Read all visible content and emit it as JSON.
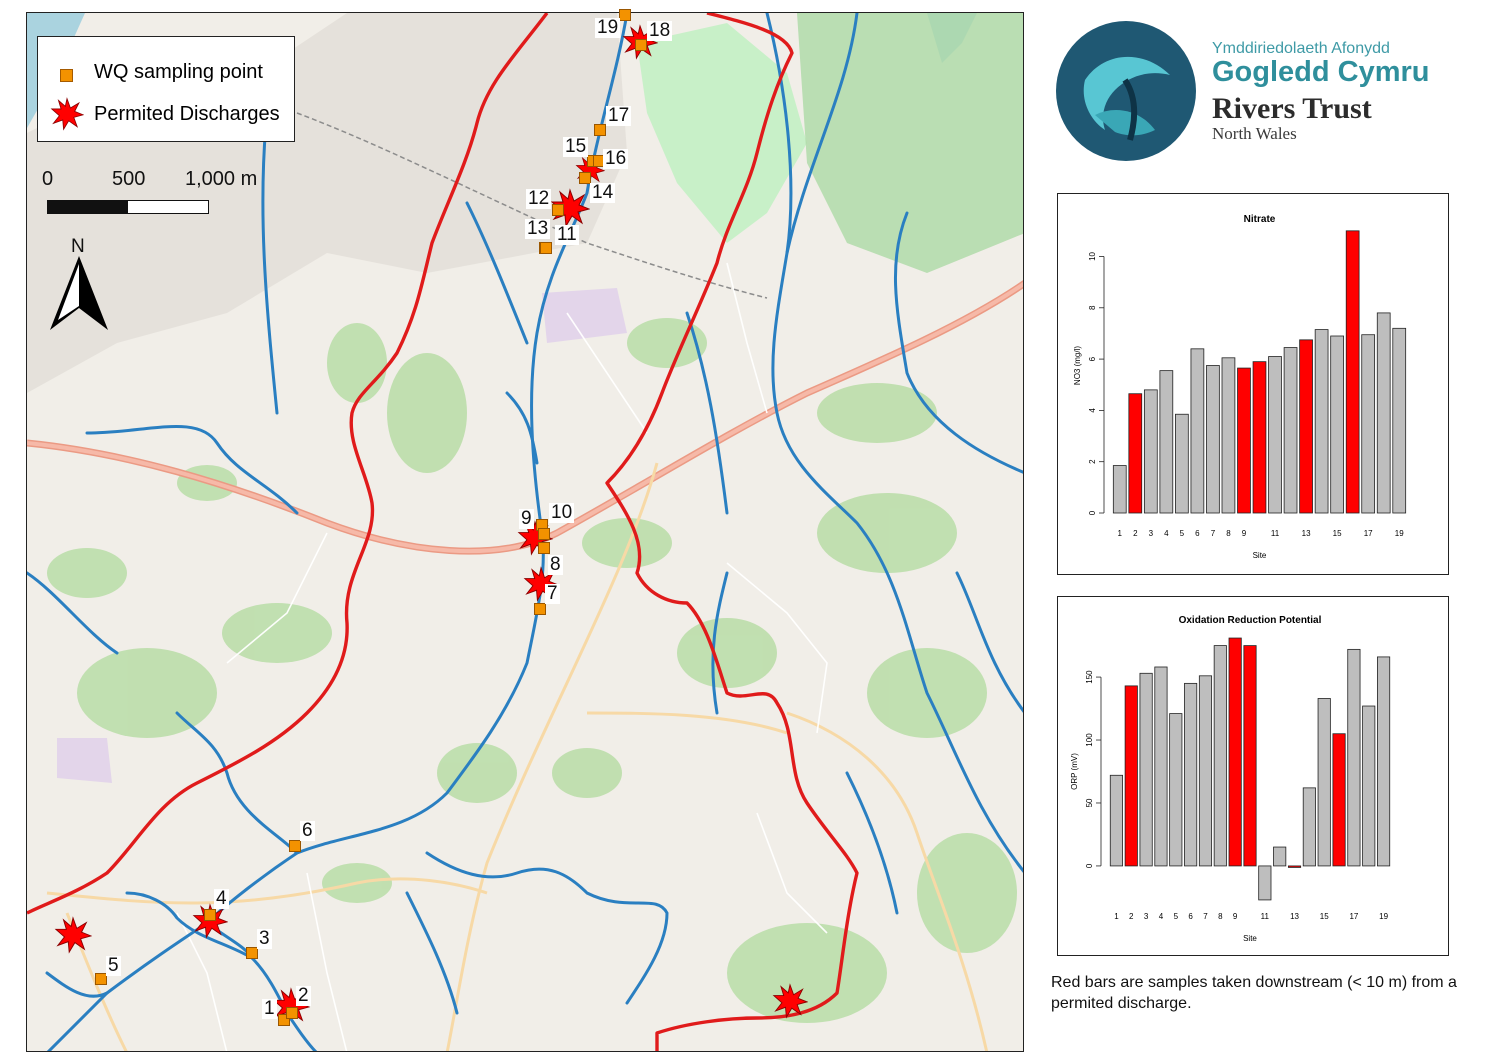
{
  "legend": {
    "sampling_label": "WQ sampling point",
    "discharge_label": "Permited Discharges"
  },
  "scale": {
    "t0": "0",
    "t1": "500",
    "t2": "1,000 m"
  },
  "north": "N",
  "sites": [
    "1",
    "2",
    "3",
    "4",
    "5",
    "6",
    "7",
    "8",
    "9",
    "10",
    "11",
    "12",
    "13",
    "14",
    "15",
    "16",
    "17",
    "18",
    "19"
  ],
  "logo": {
    "line1": "Ymddiriedolaeth Afonydd",
    "line2": "Gogledd Cymru",
    "line3": "Rivers Trust",
    "line4": "North Wales"
  },
  "colors": {
    "river": "#2a7fc1",
    "boundary": "#e01b1b",
    "highlight": "#ff0000",
    "normal": "#bebebe",
    "sampling": "#f39200"
  },
  "chart_data": [
    {
      "type": "bar",
      "title": "Nitrate",
      "xlabel": "Site",
      "ylabel": "NO3 (mg/l)",
      "categories": [
        "1",
        "2",
        "3",
        "4",
        "5",
        "6",
        "7",
        "8",
        "9",
        "10",
        "11",
        "12",
        "13",
        "14",
        "15",
        "16",
        "17",
        "18",
        "19"
      ],
      "tick_labels": [
        "1",
        "2",
        "3",
        "4",
        "5",
        "6",
        "7",
        "8",
        "9",
        "11",
        "13",
        "15",
        "17",
        "19"
      ],
      "values": [
        1.85,
        4.65,
        4.8,
        5.55,
        3.85,
        6.4,
        5.75,
        6.05,
        5.65,
        5.9,
        6.1,
        6.45,
        6.75,
        7.15,
        6.9,
        11.0,
        6.95,
        7.8,
        7.2
      ],
      "highlighted": [
        false,
        true,
        false,
        false,
        false,
        false,
        false,
        false,
        true,
        true,
        false,
        false,
        true,
        false,
        false,
        true,
        false,
        false,
        false
      ],
      "ylim": [
        0,
        11.5
      ],
      "yticks": [
        0,
        2,
        4,
        6,
        8,
        10
      ]
    },
    {
      "type": "bar",
      "title": "Oxidation Reduction Potential",
      "xlabel": "Site",
      "ylabel": "ORP (mV)",
      "categories": [
        "1",
        "2",
        "3",
        "4",
        "5",
        "6",
        "7",
        "8",
        "9",
        "10",
        "11",
        "12",
        "13",
        "14",
        "15",
        "16",
        "17",
        "18",
        "19"
      ],
      "tick_labels": [
        "1",
        "2",
        "3",
        "4",
        "5",
        "6",
        "7",
        "8",
        "9",
        "11",
        "13",
        "15",
        "17",
        "19"
      ],
      "values": [
        72,
        143,
        153,
        158,
        121,
        145,
        151,
        175,
        181,
        175,
        -27,
        15,
        -1,
        62,
        133,
        105,
        172,
        127,
        166
      ],
      "highlighted": [
        false,
        true,
        false,
        false,
        false,
        false,
        false,
        false,
        true,
        true,
        false,
        false,
        true,
        false,
        false,
        true,
        false,
        false,
        false
      ],
      "ylim": [
        -35,
        185
      ],
      "yticks": [
        0,
        50,
        100,
        150
      ]
    }
  ],
  "caption": "Red bars are samples taken downstream (< 10 m) from a permited discharge."
}
